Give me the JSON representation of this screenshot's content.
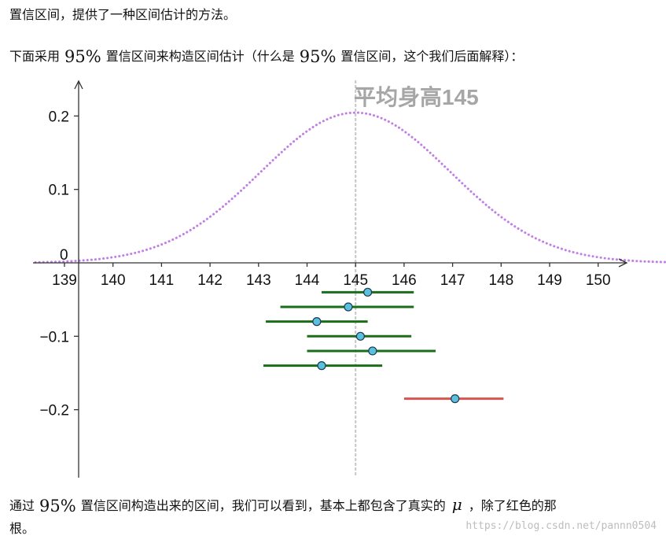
{
  "text": {
    "p1": "置信区间，提供了一种区间估计的方法。",
    "p2_before": "下面采用",
    "p2_math1": "95%",
    "p2_mid": "置信区间来构造区间估计（什么是",
    "p2_math2": "95%",
    "p2_after": "置信区间，这个我们后面解释）：",
    "p3_before": "通过",
    "p3_math": "95%",
    "p3_mid": "置信区间构造出来的区间，我们可以看到，基本上都包含了真实的",
    "p3_mu": "μ",
    "p3_after": "，除了红色的那",
    "p4": "根。"
  },
  "watermark": "https://blog.csdn.net/pannn0504",
  "chart_data": {
    "type": "scatter",
    "annotation": "平均身高145",
    "x_ticks": [
      "139",
      "140",
      "141",
      "142",
      "143",
      "144",
      "145",
      "146",
      "147",
      "148",
      "149",
      "150"
    ],
    "y_ticks": [
      "0.2",
      "0.1",
      "0",
      "−0.1",
      "−0.2"
    ],
    "xlim": [
      138.4,
      151.4
    ],
    "ylim": [
      -0.29,
      0.25
    ],
    "curve": {
      "kind": "normal_pdf",
      "mean": 145,
      "sd": 1.95,
      "color": "#c17fe6",
      "style": "dotted"
    },
    "mean_line": {
      "x": 145,
      "color": "#c8c8c8",
      "style": "dotted"
    },
    "intervals": [
      {
        "center": 145.25,
        "low": 144.3,
        "high": 146.2,
        "y": -0.04,
        "covers_mean": true
      },
      {
        "center": 144.85,
        "low": 143.45,
        "high": 146.2,
        "y": -0.06,
        "covers_mean": true
      },
      {
        "center": 144.2,
        "low": 143.15,
        "high": 145.25,
        "y": -0.08,
        "covers_mean": true
      },
      {
        "center": 145.1,
        "low": 144.0,
        "high": 146.15,
        "y": -0.1,
        "covers_mean": true
      },
      {
        "center": 145.35,
        "low": 144.0,
        "high": 146.65,
        "y": -0.12,
        "covers_mean": true
      },
      {
        "center": 144.3,
        "low": 143.1,
        "high": 145.55,
        "y": -0.14,
        "covers_mean": true
      },
      {
        "center": 147.05,
        "low": 146.0,
        "high": 148.05,
        "y": -0.185,
        "covers_mean": false
      }
    ],
    "colors": {
      "cover": "#1a6e1a",
      "miss": "#d9534f",
      "point_fill": "#5bc0de",
      "axis": "#333333"
    }
  }
}
